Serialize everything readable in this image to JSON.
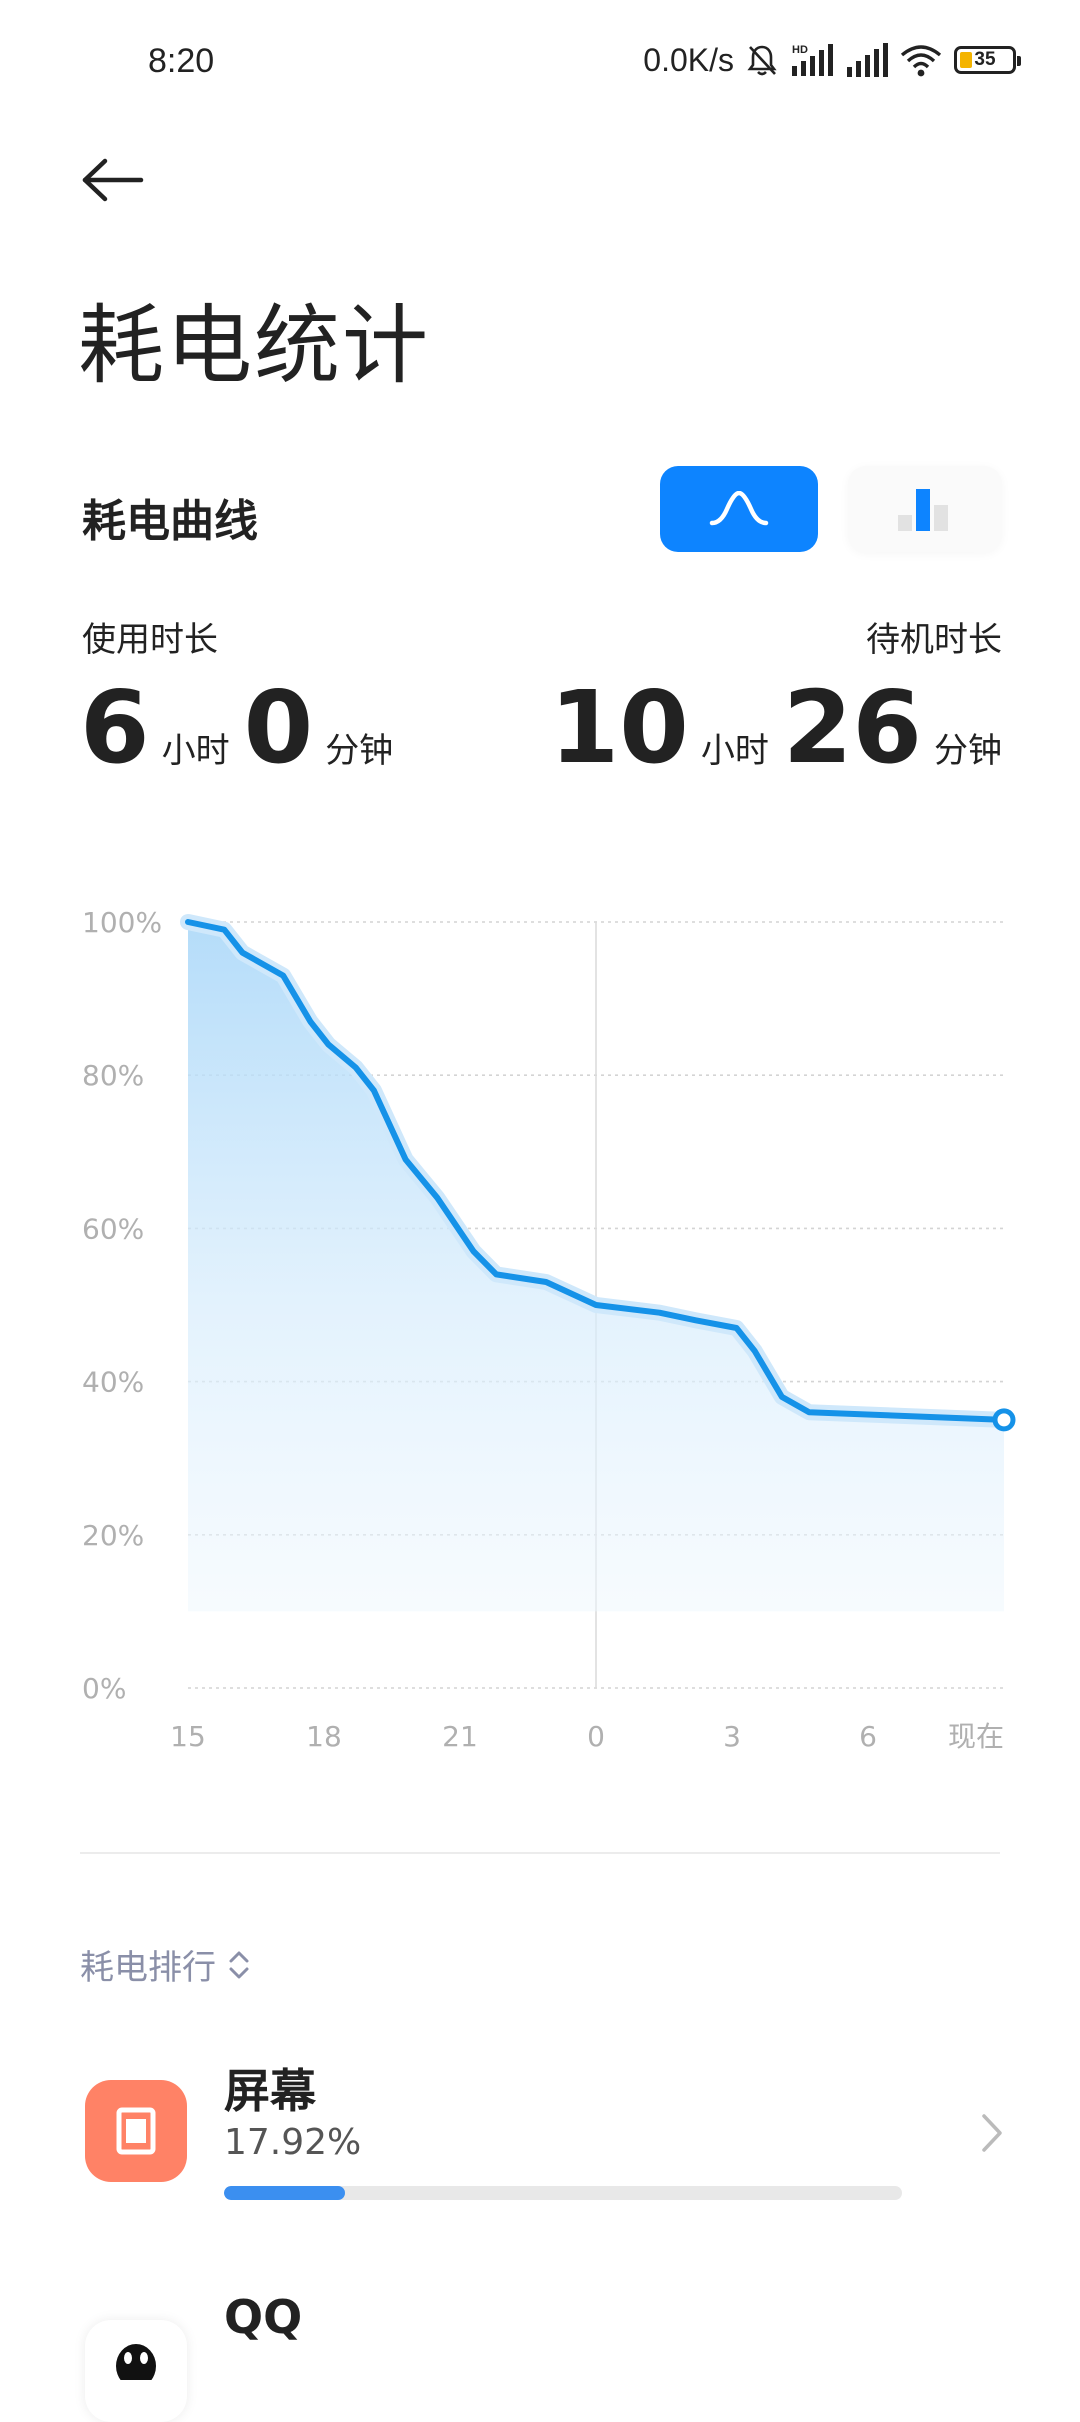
{
  "status_bar": {
    "time": "8:20",
    "net_speed": "0.0K/s",
    "battery": "35",
    "icons": [
      "bell-off-icon",
      "signal-hd-icon",
      "signal-icon",
      "wifi-icon",
      "battery-icon"
    ]
  },
  "header": {
    "back_icon": "arrow-left-icon",
    "title": "耗电统计"
  },
  "curve_section": {
    "title": "耗电曲线",
    "toggle": {
      "active": "curve",
      "curve_icon": "curve-icon",
      "bar_icon": "bar-chart-icon"
    }
  },
  "usage": {
    "use_label": "使用时长",
    "use_hours": "6",
    "use_hours_unit": "小时",
    "use_minutes": "0",
    "use_minutes_unit": "分钟",
    "standby_label": "待机时长",
    "standby_hours": "10",
    "standby_hours_unit": "小时",
    "standby_minutes": "26",
    "standby_minutes_unit": "分钟"
  },
  "chart_data": {
    "type": "area",
    "y_ticks": [
      "100%",
      "80%",
      "60%",
      "40%",
      "20%",
      "0%"
    ],
    "x_ticks": [
      "15",
      "18",
      "21",
      "0",
      "3",
      "6",
      "现在"
    ],
    "ylim": [
      0,
      100
    ],
    "x_range": [
      15,
      33
    ],
    "grid": true,
    "accent": "#1592e8",
    "series": [
      {
        "x": [
          15.0,
          15.8,
          16.2,
          17.1,
          17.7,
          18.1,
          18.7,
          19.1,
          19.8,
          20.5,
          21.3,
          21.8,
          22.9,
          24.0,
          25.4,
          26.2,
          27.1,
          27.5,
          28.1,
          28.7,
          33.0
        ],
        "values": [
          100,
          99,
          96,
          93,
          87,
          84,
          81,
          78,
          69,
          64,
          57,
          54,
          53,
          50,
          49,
          48,
          47,
          44,
          38,
          36,
          35
        ]
      }
    ],
    "endpoint_marker": true
  },
  "ranking": {
    "label": "耗电排行",
    "sort_icon": "sort-updown-icon",
    "items": [
      {
        "name": "屏幕",
        "percent": "17.92%",
        "fraction": 0.1792,
        "icon": "screen-icon",
        "icon_color": "#ff8266"
      },
      {
        "name": "QQ",
        "icon": "qq-icon"
      }
    ],
    "chevron_icon": "chevron-right-icon"
  }
}
